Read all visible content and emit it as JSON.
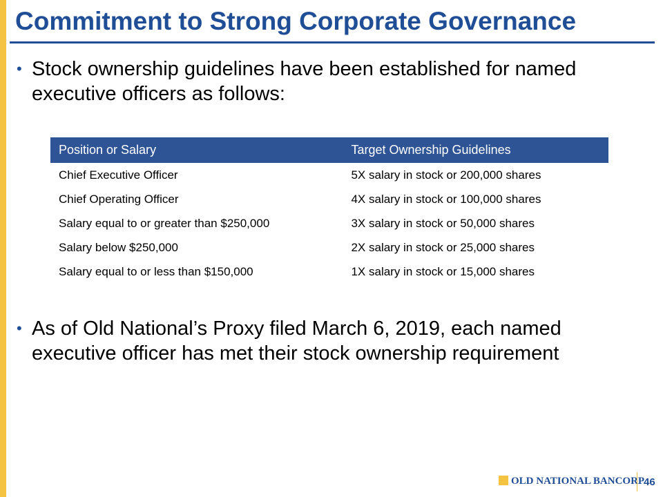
{
  "header": {
    "title": "Commitment to Strong Corporate Governance"
  },
  "bullets": [
    "Stock ownership guidelines have been established for named executive officers as follows:",
    "As of Old National’s Proxy filed March 6, 2019, each named executive officer has met their stock ownership requirement"
  ],
  "table": {
    "columns": [
      "Position or Salary",
      "Target Ownership Guidelines"
    ],
    "rows": [
      [
        "Chief Executive Officer",
        "5X salary in stock or 200,000 shares"
      ],
      [
        "Chief Operating Officer",
        "4X salary in stock or 100,000 shares"
      ],
      [
        "Salary equal to or greater than $250,000",
        "3X salary in stock or 50,000 shares"
      ],
      [
        "Salary below $250,000",
        "2X salary in stock or 25,000 shares"
      ],
      [
        "Salary equal to or less than $150,000",
        "1X salary in stock or 15,000 shares"
      ]
    ]
  },
  "footer": {
    "logo": "OLD NATIONAL BANCORP",
    "page": "46"
  }
}
